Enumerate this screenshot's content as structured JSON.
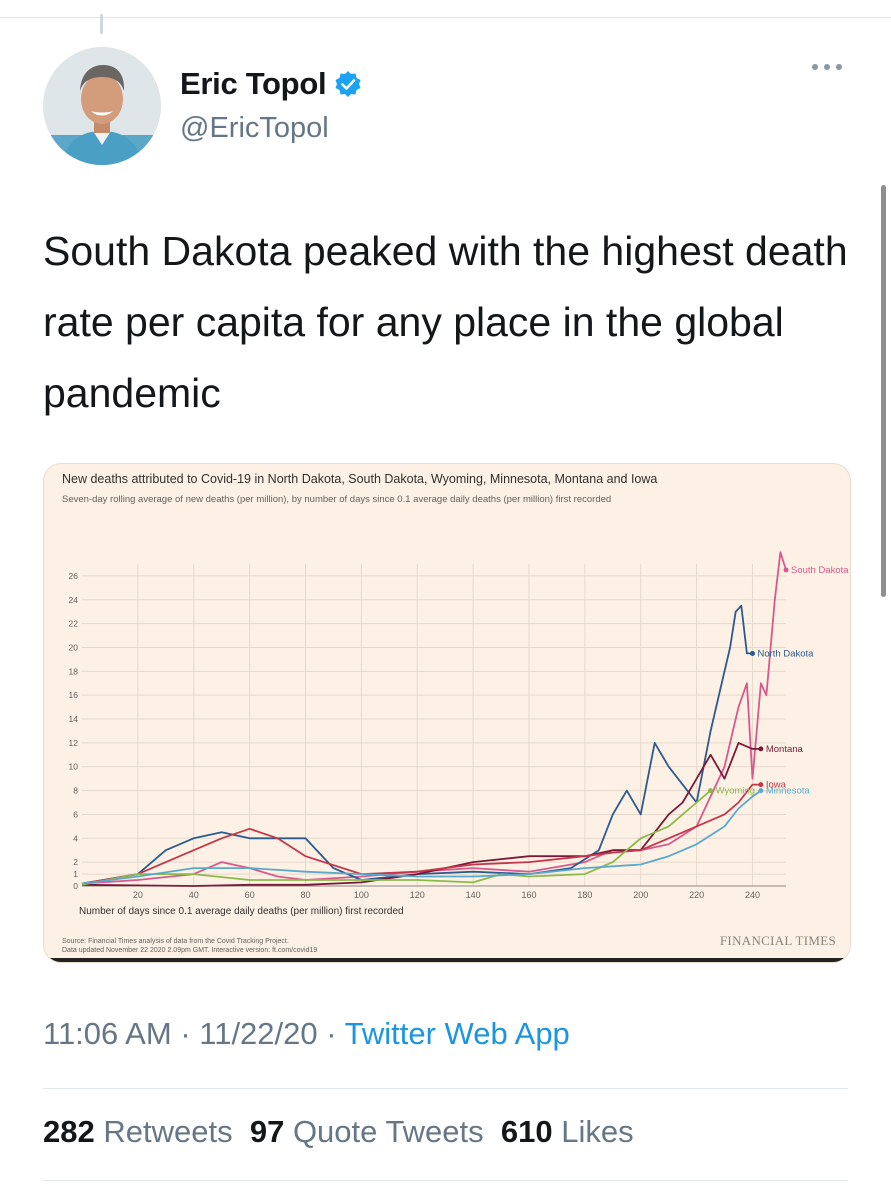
{
  "author": {
    "name": "Eric Topol",
    "handle": "@EricTopol"
  },
  "tweet": {
    "text": "South Dakota peaked with the highest death rate per capita for any place in the global pandemic"
  },
  "meta": {
    "time": "11:06 AM",
    "date": "11/22/20",
    "separator": "·",
    "app": "Twitter Web App"
  },
  "stats": {
    "retweets_count": "282",
    "retweets_label": "Retweets",
    "quotes_count": "97",
    "quotes_label": "Quote Tweets",
    "likes_count": "610",
    "likes_label": "Likes"
  },
  "colors": {
    "verified": "#1da1f2",
    "link": "#1b95e0",
    "card_bg": "#fdf1e5"
  },
  "icons": [
    "verified-badge-icon",
    "more-options-icon",
    "avatar-image"
  ],
  "chart_data": {
    "type": "line",
    "title": "New deaths attributed to Covid-19 in North Dakota, South Dakota, Wyoming, Minnesota, Montana and Iowa",
    "subtitle": "Seven-day rolling average of new deaths (per million), by number of days since 0.1 average daily deaths (per million) first recorded",
    "xlabel": "Number of days since 0.1 average daily deaths (per million) first recorded",
    "ylabel": "",
    "xlim": [
      0,
      252
    ],
    "ylim": [
      0,
      27
    ],
    "x_ticks": [
      20,
      40,
      60,
      80,
      100,
      120,
      140,
      160,
      180,
      200,
      220,
      240
    ],
    "y_ticks": [
      0,
      1,
      2,
      4,
      6,
      8,
      10,
      12,
      14,
      16,
      18,
      20,
      22,
      24,
      26
    ],
    "grid": true,
    "source": "Source: Financial Times analysis of data from the Covid Tracking Project.",
    "updated": "Data updated November 22 2020 2.09pm GMT. Interactive version: ft.com/covid19",
    "publisher": "FINANCIAL TIMES",
    "series": [
      {
        "name": "South Dakota",
        "label": "South Dakota",
        "color": "#d65a8c",
        "x": [
          0,
          20,
          40,
          50,
          60,
          70,
          80,
          100,
          120,
          140,
          160,
          180,
          190,
          200,
          210,
          220,
          230,
          235,
          238,
          240,
          243,
          245,
          248,
          250,
          252
        ],
        "y": [
          0.2,
          0.5,
          1.0,
          2.0,
          1.5,
          0.8,
          0.5,
          0.8,
          1.2,
          1.5,
          1.2,
          2.0,
          3.0,
          3.0,
          3.5,
          5.0,
          10.0,
          15.0,
          17.0,
          9.0,
          17.0,
          16.0,
          24.0,
          28.0,
          26.5
        ]
      },
      {
        "name": "North Dakota",
        "label": "North Dakota",
        "color": "#2c5a8f",
        "x": [
          0,
          20,
          30,
          40,
          50,
          60,
          70,
          80,
          90,
          100,
          120,
          140,
          160,
          175,
          185,
          190,
          195,
          200,
          205,
          210,
          220,
          225,
          230,
          232,
          234,
          236,
          238,
          240
        ],
        "y": [
          0.2,
          1.0,
          3.0,
          4.0,
          4.5,
          4.0,
          4.0,
          4.0,
          1.5,
          0.5,
          1.0,
          1.2,
          1.0,
          1.5,
          3.0,
          6.0,
          8.0,
          6.0,
          12.0,
          10.0,
          7.0,
          13.0,
          18.0,
          20.0,
          23.0,
          23.5,
          19.5,
          19.5
        ]
      },
      {
        "name": "Montana",
        "label": "Montana",
        "color": "#7a1a3a",
        "x": [
          0,
          40,
          60,
          80,
          100,
          120,
          140,
          160,
          180,
          190,
          200,
          210,
          215,
          220,
          225,
          230,
          235,
          240,
          243
        ],
        "y": [
          0.1,
          0.0,
          0.1,
          0.1,
          0.3,
          1.0,
          2.0,
          2.5,
          2.5,
          3.0,
          3.0,
          6.0,
          7.0,
          9.0,
          11.0,
          9.0,
          12.0,
          11.5,
          11.5
        ]
      },
      {
        "name": "Iowa",
        "label": "Iowa",
        "color": "#c4364a",
        "x": [
          0,
          20,
          40,
          50,
          60,
          70,
          80,
          100,
          120,
          140,
          160,
          180,
          190,
          200,
          210,
          220,
          230,
          235,
          240,
          243
        ],
        "y": [
          0.2,
          1.0,
          3.0,
          4.0,
          4.8,
          4.0,
          2.5,
          1.0,
          1.2,
          1.8,
          2.0,
          2.5,
          2.8,
          3.0,
          4.0,
          5.0,
          6.0,
          7.0,
          8.5,
          8.5
        ]
      },
      {
        "name": "Wyoming",
        "label": "Wyoming",
        "color": "#8cba4a",
        "x": [
          0,
          20,
          40,
          60,
          80,
          100,
          120,
          140,
          150,
          160,
          180,
          190,
          200,
          210,
          215,
          220,
          225
        ],
        "y": [
          0.1,
          1.0,
          1.0,
          0.5,
          0.5,
          0.5,
          0.5,
          0.3,
          1.0,
          0.8,
          1.0,
          2.0,
          4.0,
          5.0,
          6.0,
          7.0,
          8.0
        ]
      },
      {
        "name": "Minnesota",
        "label": "Minnesota",
        "color": "#5aa9cc",
        "x": [
          0,
          20,
          40,
          60,
          80,
          100,
          120,
          140,
          160,
          180,
          200,
          210,
          220,
          230,
          235,
          240,
          243
        ],
        "y": [
          0.2,
          0.8,
          1.5,
          1.5,
          1.2,
          1.0,
          0.8,
          0.8,
          1.0,
          1.5,
          1.8,
          2.5,
          3.5,
          5.0,
          6.5,
          7.5,
          8.0
        ]
      }
    ]
  }
}
